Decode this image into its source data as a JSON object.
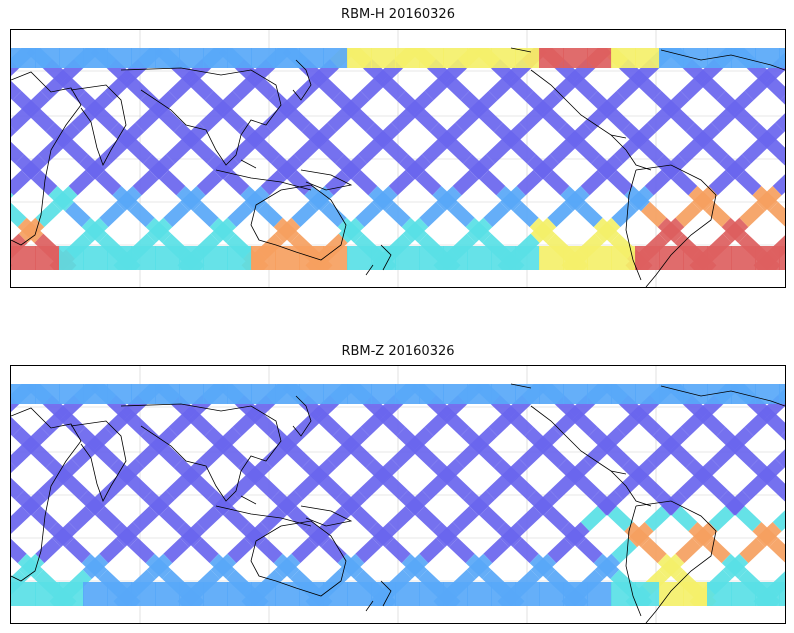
{
  "panels": [
    {
      "title": "RBM-H 20160326",
      "variant": "H"
    },
    {
      "title": "RBM-Z 20160326",
      "variant": "Z"
    }
  ],
  "colors": {
    "low": "#6a66ee",
    "mid_low": "#58a8f8",
    "mid": "#59e0e6",
    "mid_high": "#f4f06a",
    "high": "#f6a060",
    "max": "#dd5f5f",
    "coast": "#000000",
    "grid": "#cfcfcf"
  }
}
